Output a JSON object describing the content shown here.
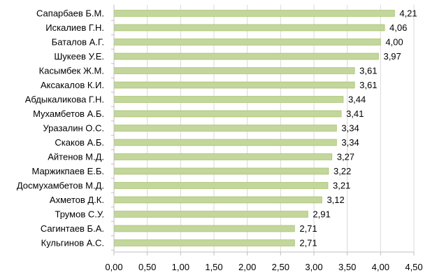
{
  "chart_data": {
    "type": "bar",
    "orientation": "horizontal",
    "categories": [
      "Сапарбаев Б.М.",
      "Искалиев Г.Н.",
      "Баталов А.Г.",
      "Шукеев У.Е.",
      "Касымбек Ж.М.",
      "Аксакалов К.И.",
      "Абдыкаликова Г.Н.",
      "Мухамбетов А.Б.",
      "Уразалин О.С.",
      "Скаков А.Б.",
      "Айтенов М.Д.",
      "Маржикпаев Е.Б.",
      "Досмухамбетов М.Д.",
      "Ахметов Д.К.",
      "Трумов С.У.",
      "Сагинтаев Б.А.",
      "Кульгинов А.С."
    ],
    "values": [
      4.21,
      4.06,
      4.0,
      3.97,
      3.61,
      3.61,
      3.44,
      3.41,
      3.34,
      3.34,
      3.27,
      3.22,
      3.21,
      3.12,
      2.91,
      2.71,
      2.71
    ],
    "value_labels": [
      "4,21",
      "4,06",
      "4,00",
      "3,97",
      "3,61",
      "3,61",
      "3,44",
      "3,41",
      "3,34",
      "3,34",
      "3,27",
      "3,22",
      "3,21",
      "3,12",
      "2,91",
      "2,71",
      "2,71"
    ],
    "x_ticks": [
      "0,00",
      "0,50",
      "1,00",
      "1,50",
      "2,00",
      "2,50",
      "3,00",
      "3,50",
      "4,00",
      "4,50"
    ],
    "xlim": [
      0,
      4.5
    ],
    "tick_step": 0.5,
    "title": "",
    "xlabel": "",
    "ylabel": "",
    "grid": "vertical",
    "legend": "none",
    "colors": {
      "bar_fill": "#c3d69b",
      "bar_stroke": "#9bbb59",
      "grid": "#d9d9d9",
      "axis": "#bfbfbf",
      "text": "#000000"
    }
  }
}
